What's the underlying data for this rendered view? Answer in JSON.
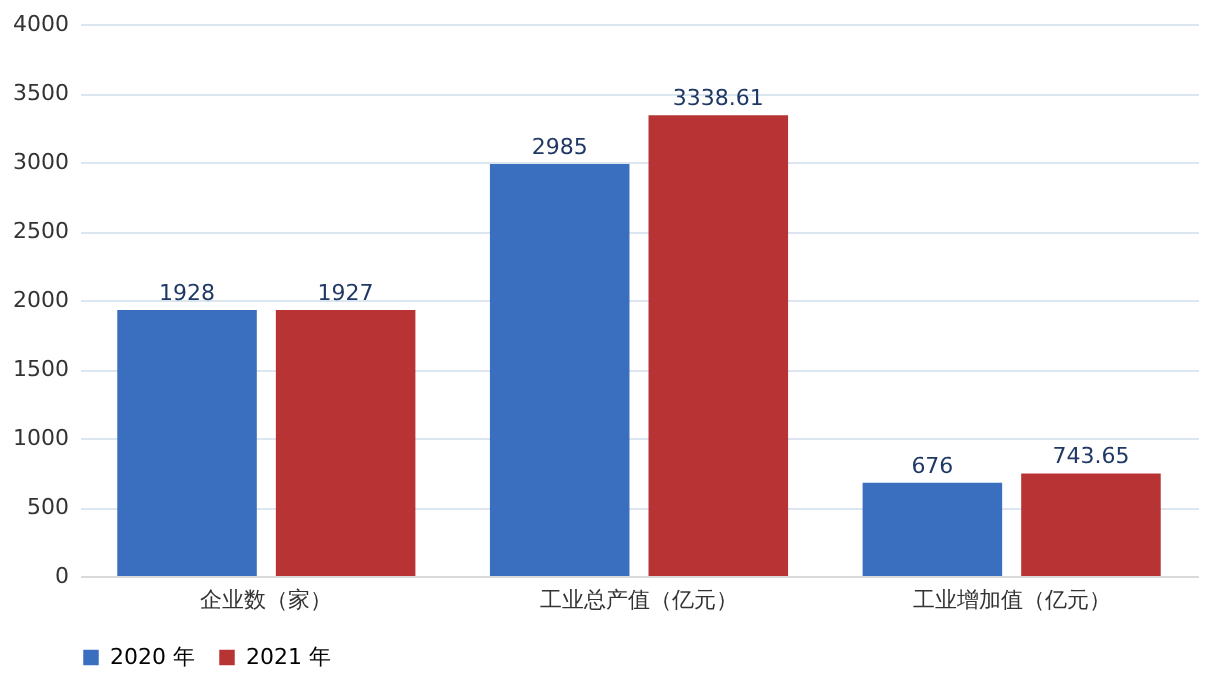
{
  "chart_data": {
    "type": "bar",
    "categories": [
      "企业数（家）",
      "工业总产值（亿元）",
      "工业增加值（亿元）"
    ],
    "series": [
      {
        "name": "2020 年",
        "color": "#3a6fbf",
        "values": [
          1928,
          2985,
          676
        ]
      },
      {
        "name": "2021 年",
        "color": "#b83434",
        "values": [
          1927,
          3338.61,
          743.65
        ]
      }
    ],
    "ylim": [
      0,
      4000
    ],
    "yticks": [
      0,
      500,
      1000,
      1500,
      2000,
      2500,
      3000,
      3500,
      4000
    ],
    "grid": "y",
    "legend": "bottom",
    "data_labels": true
  }
}
